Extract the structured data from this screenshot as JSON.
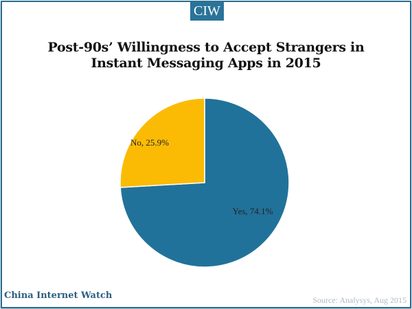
{
  "badge": "CIW",
  "brand": "China Internet Watch",
  "source": "Source: Analysys, Aug 2015",
  "chart_data": {
    "type": "pie",
    "title": "Post-90s’ Willingness to Accept Strangers in Instant Messaging Apps in 2015",
    "slices": [
      {
        "name": "Yes",
        "value": 74.1,
        "label": "Yes, 74.1%",
        "color": "#21729a"
      },
      {
        "name": "No",
        "value": 25.9,
        "label": "No, 25.9%",
        "color": "#fbbb05"
      }
    ],
    "start_angle": "12 o'clock, clockwise"
  }
}
